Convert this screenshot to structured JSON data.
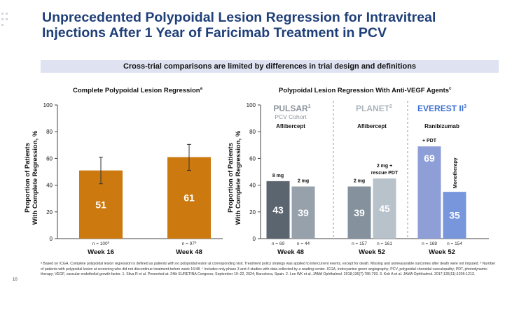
{
  "title_line1": "Unprecedented Polypoidal Lesion Regression for Intravitreal",
  "title_line2": "Injections After 1 Year of Faricimab Treatment in PCV",
  "banner": "Cross-trial comparisons are limited by differences in trial design and definitions",
  "left_title": "Complete Polypoidal Lesion Regression",
  "left_title_sup": "a",
  "right_title": "Polypoidal Lesion Regression With Anti-VEGF Agents",
  "right_title_sup": "c",
  "ylabel_line1": "Proportion of Patients",
  "ylabel_line2": "With Complete Regression, %",
  "y_ticks": [
    "0",
    "20",
    "40",
    "60",
    "80",
    "100"
  ],
  "colors": {
    "faricimab": "#cc7a10",
    "pulsar": "#5b6570",
    "pulsar_light": "#96a1ab",
    "planet": "#85929d",
    "planet_light": "#b8c2ca",
    "everest": "#8e9ed6",
    "everest_light": "#7796dc",
    "title": "#1f3f78",
    "banner": "#dfe3f1"
  },
  "trials": {
    "pulsar_name": "PULSAR",
    "pulsar_sup": "1",
    "pulsar_sub": "PCV Cohort",
    "pulsar_drug": "Aflibercept",
    "planet_name": "PLANET",
    "planet_sup": "2",
    "planet_drug": "Aflibercept",
    "everest_name": "EVEREST II",
    "everest_sup": "3",
    "everest_drug": "Ranibizumab"
  },
  "chart_data": [
    {
      "type": "bar",
      "title": "Complete Polypoidal Lesion Regression",
      "ylabel": "Proportion of Patients With Complete Regression, %",
      "ylim": [
        0,
        100
      ],
      "categories": [
        "Week 16",
        "Week 48"
      ],
      "values": [
        51,
        61
      ],
      "error_bars": [
        [
          41,
          61
        ],
        [
          51,
          70.5
        ]
      ],
      "n_labels": [
        "n = 100",
        "n = 97"
      ],
      "n_sup": "b",
      "value_labels": [
        "51",
        "61"
      ]
    },
    {
      "type": "bar",
      "title": "Polypoidal Lesion Regression With Anti-VEGF Agents",
      "ylabel": "Proportion of Patients With Complete Regression, %",
      "ylim": [
        0,
        100
      ],
      "groups": [
        {
          "week": "Week 48",
          "bars": [
            {
              "label": "8 mg",
              "value": 43,
              "n": "n = 69",
              "value_label": "43"
            },
            {
              "label": "2 mg",
              "value": 39,
              "n": "n = 44",
              "value_label": "39"
            }
          ]
        },
        {
          "week": "Week 52",
          "bars": [
            {
              "label": "2 mg",
              "value": 39,
              "n": "n = 157",
              "value_label": "39"
            },
            {
              "label": "2 mg + rescue PDT",
              "value": 45,
              "n": "n = 161",
              "value_label": "45"
            }
          ]
        },
        {
          "week": "Week 52",
          "bars": [
            {
              "label": "+ PDT",
              "value": 69,
              "n": "n = 168",
              "value_label": "69"
            },
            {
              "label": "Monotherapy",
              "value": 35,
              "n": "n = 154",
              "value_label": "35"
            }
          ]
        }
      ]
    }
  ],
  "footnote": "ᵃ Based on ICGA. Complete polypoidal lesion regression is defined as patients with no polypoidal lesion at corresponding visit. Treatment policy strategy was applied to intercurrent events, except for death. Missing and unmeasurable outcomes after death were not imputed. ᵇ Number of patients with polypoidal lesion at screening who did not discontinue treatment before week 16/48. ᶜ Includes only phase 3 and 4 studies with data collected by a reading center. ICGA, indocyanine green angiography; PCV, polypoidal choroidal vasculopathy; PDT, photodynamic therapy; VEGF, vascular endothelial growth factor. 1. Silva R et al. Presented at: 24th EURETINA Congress; September 19–22, 2024; Barcelona, Spain. 2. Lee WK et al. JAMA Ophthalmol. 2018;136(7):786-793. 3. Koh A et al. JAMA Ophthalmol. 2017;135(11):1206-1213.",
  "page_number": "10"
}
